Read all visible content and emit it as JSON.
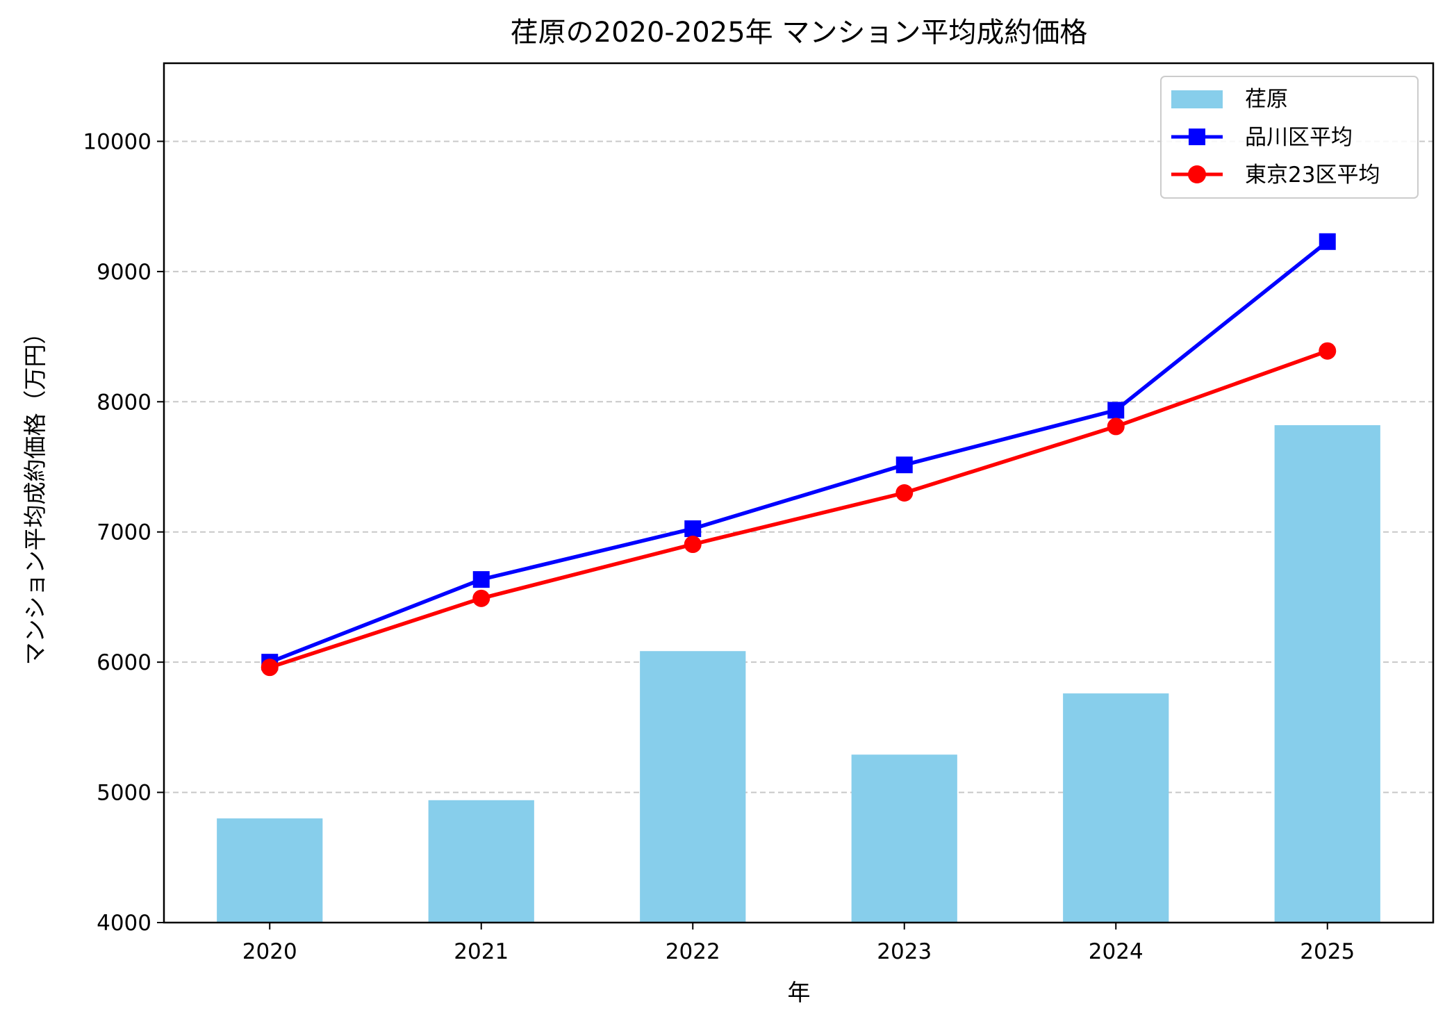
{
  "chart_data": {
    "type": "bar+line",
    "title": "荏原の2020-2025年 マンション平均成約価格",
    "xlabel": "年",
    "ylabel": "マンション平均成約価格（万円）",
    "categories": [
      "2020",
      "2021",
      "2022",
      "2023",
      "2024",
      "2025"
    ],
    "ylim": [
      4000,
      10600
    ],
    "yticks": [
      4000,
      5000,
      6000,
      7000,
      8000,
      9000,
      10000
    ],
    "grid": "y-dashed",
    "legend_position": "top-right",
    "series": [
      {
        "name": "荏原",
        "kind": "bar",
        "color": "#87CEEB",
        "values": [
          4800,
          4940,
          6085,
          5290,
          5760,
          7820
        ]
      },
      {
        "name": "品川区平均",
        "kind": "line",
        "marker": "square",
        "color": "#0000FF",
        "values": [
          6000,
          6635,
          7025,
          7515,
          7935,
          9230
        ]
      },
      {
        "name": "東京23区平均",
        "kind": "line",
        "marker": "circle",
        "color": "#FF0000",
        "values": [
          5960,
          6490,
          6905,
          7300,
          7810,
          8390
        ]
      }
    ]
  }
}
